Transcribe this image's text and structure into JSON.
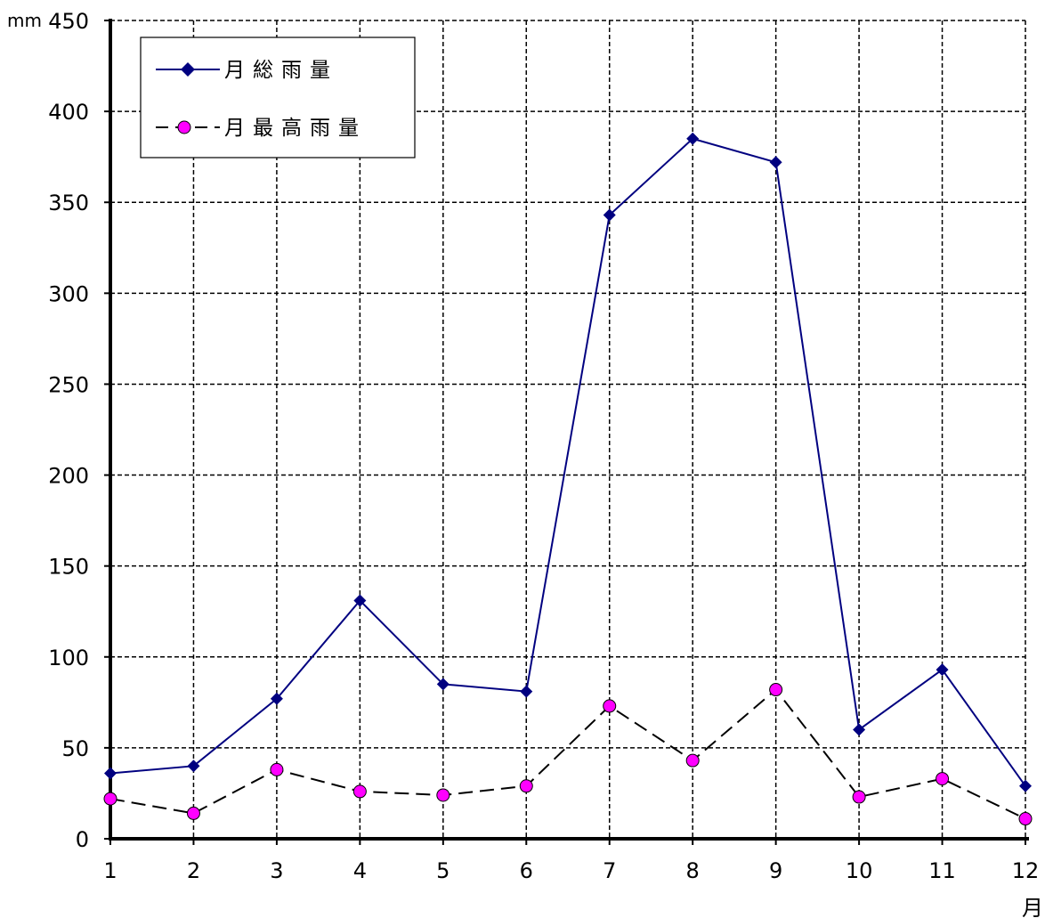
{
  "chart_data": {
    "type": "line",
    "title": "",
    "y_unit": "mm",
    "x_unit": "月",
    "categories": [
      "1",
      "2",
      "3",
      "4",
      "5",
      "6",
      "7",
      "8",
      "9",
      "10",
      "11",
      "12"
    ],
    "ylim": [
      0,
      450
    ],
    "yticks": [
      0,
      50,
      100,
      150,
      200,
      250,
      300,
      350,
      400,
      450
    ],
    "grid": true,
    "legend_position": "top-left",
    "series": [
      {
        "name": "月総雨量",
        "values": [
          36,
          40,
          77,
          131,
          85,
          81,
          343,
          385,
          372,
          60,
          93,
          29
        ],
        "color": "#000080",
        "marker": "diamond",
        "line_style": "solid"
      },
      {
        "name": "月最高雨量",
        "values": [
          22,
          14,
          38,
          26,
          24,
          29,
          73,
          43,
          82,
          23,
          33,
          11
        ],
        "color": "#000000",
        "marker_color": "#ff00ff",
        "marker": "circle",
        "line_style": "dashed"
      }
    ]
  }
}
